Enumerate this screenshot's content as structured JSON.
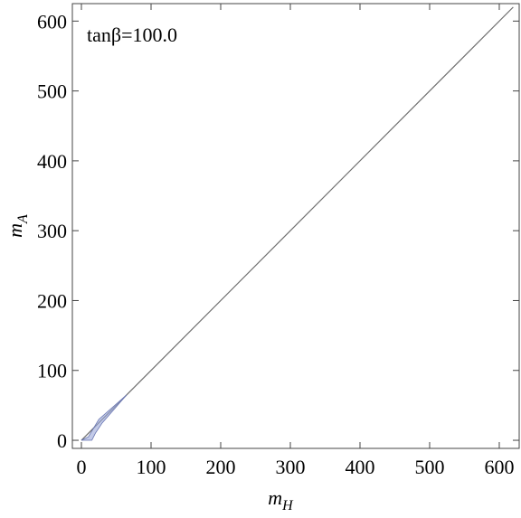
{
  "chart_data": {
    "type": "line",
    "annotation": "tanβ=100.0",
    "xlabel": [
      "m",
      "H"
    ],
    "ylabel": [
      "m",
      "A"
    ],
    "xlim": [
      -13,
      628.6
    ],
    "ylim": [
      -11.6,
      625
    ],
    "xticks": [
      0,
      100,
      200,
      300,
      400,
      500,
      600
    ],
    "yticks": [
      0,
      100,
      200,
      300,
      400,
      500,
      600
    ],
    "series": [
      {
        "color": "#6e6e6e",
        "x": [
          0,
          620
        ],
        "values": [
          0,
          620
        ]
      },
      {
        "color": "#9aa6d8",
        "fill": true,
        "x": [
          0,
          15,
          20,
          30,
          65,
          25,
          10,
          0
        ],
        "values": [
          0,
          0,
          10,
          25,
          65,
          30,
          5,
          0
        ]
      }
    ]
  }
}
